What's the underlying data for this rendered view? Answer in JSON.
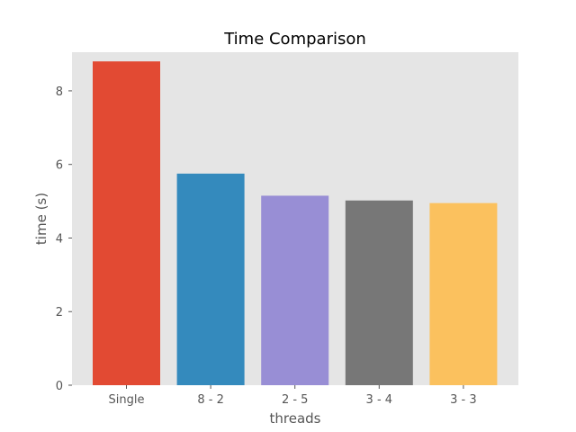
{
  "chart_data": {
    "type": "bar",
    "title": "Time Comparison",
    "xlabel": "threads",
    "ylabel": "time (s)",
    "categories": [
      "Single",
      "8 - 2",
      "2 - 5",
      "3 - 4",
      "3 - 3"
    ],
    "values": [
      8.8,
      5.75,
      5.15,
      5.02,
      4.95
    ],
    "colors": [
      "#E24A33",
      "#348ABD",
      "#988ED5",
      "#777777",
      "#FBC15E"
    ],
    "ylim": [
      0,
      9.05
    ],
    "yticks": [
      0,
      2,
      4,
      6,
      8
    ],
    "plot_background": "#E5E5E5",
    "grid": false,
    "legend": "none"
  }
}
